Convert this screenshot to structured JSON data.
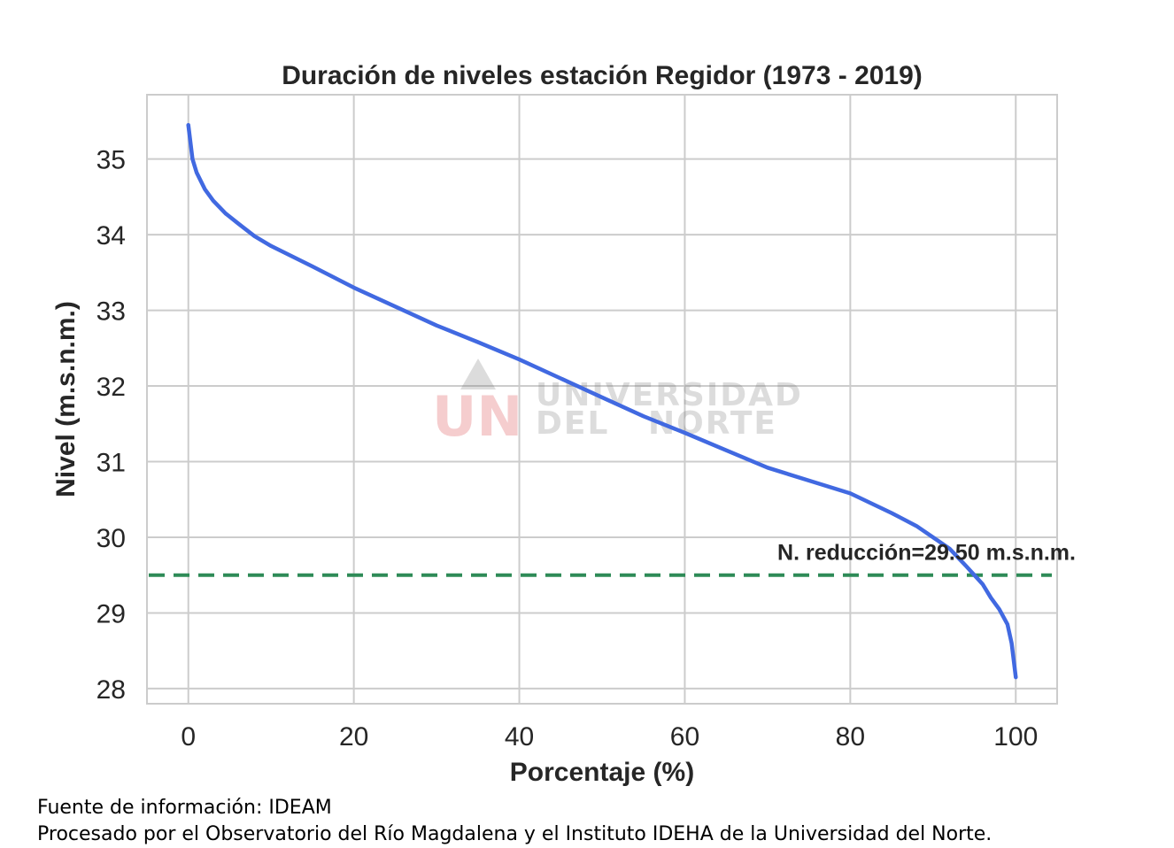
{
  "chart_data": {
    "type": "line",
    "title": "Duración de niveles estación Regidor (1973 - 2019)",
    "xlabel": "Porcentaje (%)",
    "ylabel": "Nivel (m.s.n.m.)",
    "xlim": [
      -5,
      105
    ],
    "ylim": [
      27.8,
      35.85
    ],
    "xticks": [
      0,
      20,
      40,
      60,
      80,
      100
    ],
    "yticks": [
      28,
      29,
      30,
      31,
      32,
      33,
      34,
      35
    ],
    "grid": true,
    "series": [
      {
        "color": "#4169e1",
        "x": [
          0,
          0.5,
          1,
          2,
          3,
          4.5,
          6,
          8,
          10,
          15,
          20,
          25,
          30,
          35,
          40,
          45,
          50,
          55,
          60,
          65,
          70,
          75,
          80,
          85,
          88,
          90,
          92,
          94,
          95,
          96,
          97,
          98,
          99,
          99.5,
          100
        ],
        "y": [
          35.45,
          35.0,
          34.82,
          34.6,
          34.45,
          34.28,
          34.15,
          33.98,
          33.85,
          33.58,
          33.3,
          33.05,
          32.8,
          32.58,
          32.35,
          32.1,
          31.85,
          31.6,
          31.38,
          31.15,
          30.92,
          30.75,
          30.58,
          30.32,
          30.15,
          30.0,
          29.85,
          29.62,
          29.5,
          29.38,
          29.2,
          29.05,
          28.85,
          28.6,
          28.15
        ]
      }
    ],
    "reference_line": {
      "y": 29.5,
      "color": "#2e8b57",
      "style": "dashed",
      "label": "N. reducción=29.50 m.s.n.m."
    },
    "watermark": {
      "logo_letters": "UN",
      "line1": "UNIVERSIDAD",
      "line2": "DEL   NORTE"
    }
  },
  "footer": {
    "source": "Fuente de información: IDEAM",
    "processed": "Procesado por el Observatorio del Río Magdalena y el Instituto IDEHA de la Universidad del Norte."
  }
}
